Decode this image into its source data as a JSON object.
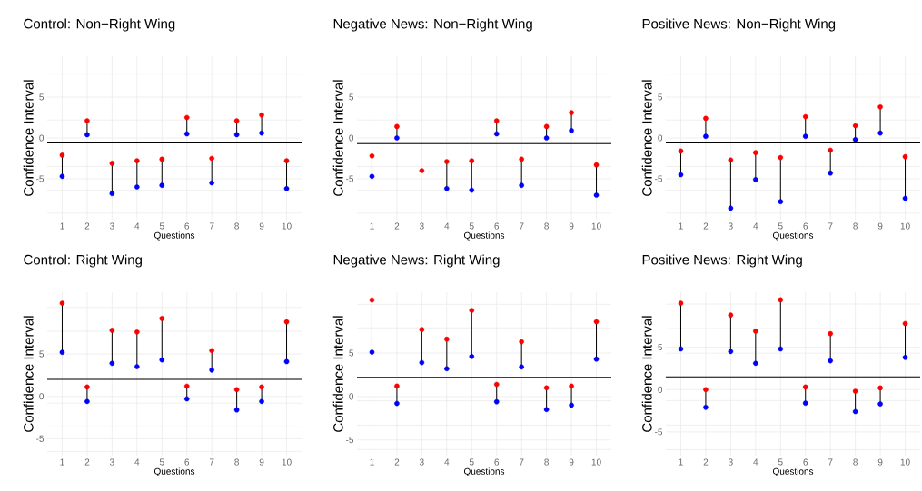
{
  "chart_data": [
    {
      "type": "scatter",
      "title": "Control: Non−Right Wing",
      "xlabel": "Questions",
      "ylabel": "Confidence Interval",
      "categories": [
        "1",
        "2",
        "3",
        "4",
        "5",
        "6",
        "7",
        "8",
        "9",
        "10"
      ],
      "grid": true,
      "ylim": [
        -10,
        10
      ],
      "yticks": [
        {
          "value": -9.2,
          "label": null
        },
        {
          "value": -6.4,
          "label": null
        },
        -5,
        {
          "value": -3.5,
          "label": null
        },
        {
          "value": -0.6,
          "label": null
        },
        0,
        {
          "value": 2.2,
          "label": null
        },
        5,
        {
          "value": 7.8,
          "label": null
        }
      ],
      "ref_lines": [
        {
          "axis": "y",
          "value": -0.6,
          "color": "#000000"
        }
      ],
      "series": [
        {
          "color": "#0000ff",
          "values": [
            -4.7,
            0.4,
            -6.8,
            -6.0,
            -5.8,
            0.5,
            -5.5,
            0.4,
            0.6,
            -6.2
          ]
        },
        {
          "color": "#ff0000",
          "values": [
            -2.1,
            2.1,
            -3.1,
            -2.8,
            -2.6,
            2.5,
            -2.5,
            2.1,
            2.8,
            -2.8
          ]
        }
      ]
    },
    {
      "type": "scatter",
      "title": "Negative News: Non−Right Wing",
      "xlabel": "Questions",
      "ylabel": "Confidence Interval",
      "categories": [
        "1",
        "2",
        "3",
        "4",
        "5",
        "6",
        "7",
        "8",
        "9",
        "10"
      ],
      "grid": true,
      "ylim": [
        -10,
        10
      ],
      "yticks": [
        {
          "value": -9.2,
          "label": null
        },
        {
          "value": -6.4,
          "label": null
        },
        -5,
        {
          "value": -3.5,
          "label": null
        },
        {
          "value": -0.6,
          "label": null
        },
        0,
        {
          "value": 2.2,
          "label": null
        },
        5,
        {
          "value": 7.8,
          "label": null
        }
      ],
      "ref_lines": [
        {
          "axis": "y",
          "value": -0.7,
          "color": "#000000"
        }
      ],
      "series": [
        {
          "color": "#0000ff",
          "values": [
            -4.7,
            0.0,
            null,
            -6.2,
            -6.4,
            0.5,
            -5.8,
            0.0,
            0.9,
            -7.0
          ]
        },
        {
          "color": "#ff0000",
          "values": [
            -2.2,
            1.4,
            -4.0,
            -2.9,
            -2.8,
            2.1,
            -2.6,
            1.4,
            3.1,
            -3.3
          ]
        }
      ]
    },
    {
      "type": "scatter",
      "title": "Positive News: Non−Right Wing",
      "xlabel": "Questions",
      "ylabel": "Confidence Interval",
      "categories": [
        "1",
        "2",
        "3",
        "4",
        "5",
        "6",
        "7",
        "8",
        "9",
        "10"
      ],
      "grid": true,
      "ylim": [
        -10,
        10
      ],
      "yticks": [
        {
          "value": -9.2,
          "label": null
        },
        {
          "value": -6.4,
          "label": null
        },
        -5,
        {
          "value": -3.5,
          "label": null
        },
        {
          "value": -0.6,
          "label": null
        },
        0,
        {
          "value": 2.2,
          "label": null
        },
        5,
        {
          "value": 7.8,
          "label": null
        }
      ],
      "ref_lines": [
        {
          "axis": "y",
          "value": -0.6,
          "color": "#000000"
        }
      ],
      "series": [
        {
          "color": "#0000ff",
          "values": [
            -4.5,
            0.2,
            -8.6,
            -5.1,
            -7.8,
            0.2,
            -4.3,
            -0.2,
            0.6,
            -7.4
          ]
        },
        {
          "color": "#ff0000",
          "values": [
            -1.6,
            2.4,
            -2.7,
            -1.8,
            -2.4,
            2.6,
            -1.5,
            1.5,
            3.8,
            -2.3
          ]
        }
      ]
    },
    {
      "type": "scatter",
      "title": "Control: Right Wing",
      "xlabel": "Questions",
      "ylabel": "Confidence Interval",
      "categories": [
        "1",
        "2",
        "3",
        "4",
        "5",
        "6",
        "7",
        "8",
        "9",
        "10"
      ],
      "grid": true,
      "ylim": [
        -7,
        12.3
      ],
      "yticks": [
        {
          "value": -6.5,
          "label": null
        },
        -5,
        {
          "value": -3.6,
          "label": null
        },
        {
          "value": -0.8,
          "label": null
        },
        0,
        {
          "value": 2.0,
          "label": null
        },
        5,
        {
          "value": 7.7,
          "label": null
        },
        {
          "value": 10.5,
          "label": null
        }
      ],
      "ref_lines": [
        {
          "axis": "y",
          "value": 2.0,
          "color": "#000000"
        }
      ],
      "series": [
        {
          "color": "#0000ff",
          "values": [
            5.2,
            -0.6,
            3.9,
            3.5,
            4.3,
            -0.3,
            3.1,
            -1.6,
            -0.6,
            4.1
          ]
        },
        {
          "color": "#ff0000",
          "values": [
            11.0,
            1.1,
            7.8,
            7.6,
            9.2,
            1.2,
            5.4,
            0.8,
            1.1,
            8.8
          ]
        }
      ]
    },
    {
      "type": "scatter",
      "title": "Negative News: Right Wing",
      "xlabel": "Questions",
      "ylabel": "Confidence Interval",
      "categories": [
        "1",
        "2",
        "3",
        "4",
        "5",
        "6",
        "7",
        "8",
        "9",
        "10"
      ],
      "grid": true,
      "ylim": [
        -6.8,
        12
      ],
      "yticks": [
        {
          "value": -6.1,
          "label": null
        },
        -5,
        {
          "value": -3.3,
          "label": null
        },
        {
          "value": -0.5,
          "label": null
        },
        0,
        {
          "value": 2.2,
          "label": null
        },
        5,
        {
          "value": 7.9,
          "label": null
        },
        {
          "value": 10.6,
          "label": null
        }
      ],
      "ref_lines": [
        {
          "axis": "y",
          "value": 2.2,
          "color": "#000000"
        }
      ],
      "series": [
        {
          "color": "#0000ff",
          "values": [
            5.1,
            -0.8,
            3.9,
            3.2,
            4.6,
            -0.6,
            3.4,
            -1.5,
            -1.0,
            4.3
          ]
        },
        {
          "color": "#ff0000",
          "values": [
            11.1,
            1.2,
            7.7,
            6.6,
            9.9,
            1.4,
            6.3,
            1.0,
            1.2,
            8.6
          ]
        }
      ]
    },
    {
      "type": "scatter",
      "title": "Positive News: Right Wing",
      "xlabel": "Questions",
      "ylabel": "Confidence Interval",
      "categories": [
        "1",
        "2",
        "3",
        "4",
        "5",
        "6",
        "7",
        "8",
        "9",
        "10"
      ],
      "grid": true,
      "ylim": [
        -7.8,
        11.5
      ],
      "yticks": [
        {
          "value": -7.1,
          "label": null
        },
        -5,
        {
          "value": -4.2,
          "label": null
        },
        {
          "value": -1.3,
          "label": null
        },
        0,
        {
          "value": 1.5,
          "label": null
        },
        {
          "value": 4.3,
          "label": null
        },
        5,
        {
          "value": 7.2,
          "label": null
        },
        {
          "value": 10.1,
          "label": null
        }
      ],
      "ref_lines": [
        {
          "axis": "y",
          "value": 1.5,
          "color": "#000000"
        }
      ],
      "series": [
        {
          "color": "#0000ff",
          "values": [
            4.8,
            -2.1,
            4.5,
            3.1,
            4.8,
            -1.6,
            3.4,
            -2.6,
            -1.7,
            3.8
          ]
        },
        {
          "color": "#ff0000",
          "values": [
            10.2,
            0.0,
            8.8,
            6.9,
            10.6,
            0.3,
            6.6,
            -0.2,
            0.2,
            7.8
          ]
        }
      ]
    }
  ]
}
